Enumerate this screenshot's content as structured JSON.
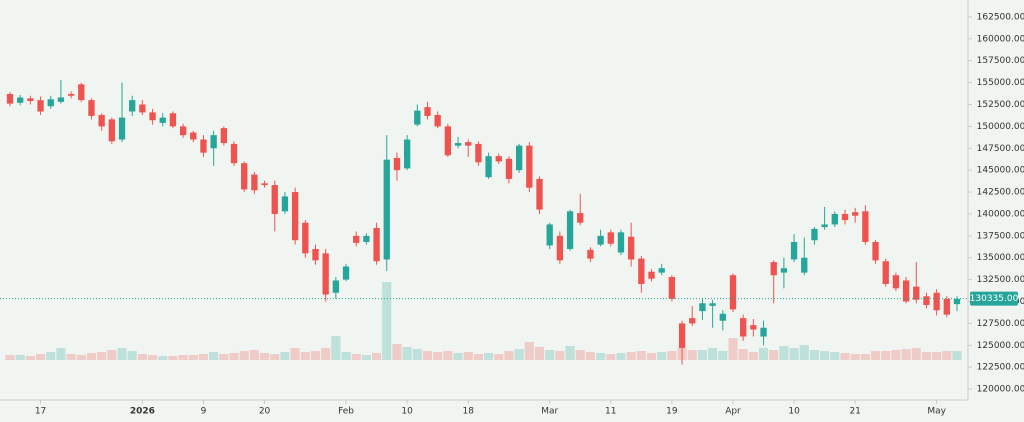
{
  "chart_data": {
    "type": "candlestick",
    "categories": [
      null,
      null,
      null,
      "17",
      null,
      null,
      null,
      null,
      null,
      null,
      null,
      null,
      null,
      "2026",
      null,
      null,
      null,
      null,
      null,
      "9",
      null,
      null,
      null,
      null,
      null,
      "20",
      null,
      null,
      null,
      null,
      null,
      null,
      null,
      "Feb",
      null,
      null,
      null,
      null,
      null,
      "10",
      null,
      null,
      null,
      null,
      null,
      "18",
      null,
      null,
      null,
      null,
      null,
      null,
      null,
      "Mar",
      null,
      null,
      null,
      null,
      null,
      "11",
      null,
      null,
      null,
      null,
      null,
      "19",
      null,
      null,
      null,
      null,
      null,
      "Apr",
      null,
      null,
      null,
      null,
      null,
      "10",
      null,
      null,
      null,
      null,
      null,
      "21",
      null,
      null,
      null,
      null,
      null,
      null,
      null,
      "May",
      null,
      null
    ],
    "open": [
      153700,
      152700,
      153200,
      153000,
      152300,
      152800,
      153700,
      154800,
      153000,
      151300,
      150800,
      148500,
      151700,
      152500,
      151600,
      150400,
      151500,
      150000,
      149300,
      148500,
      147500,
      149800,
      148000,
      145800,
      144500,
      143500,
      143300,
      140300,
      142500,
      139000,
      136000,
      135500,
      131000,
      132500,
      137500,
      136800,
      138400,
      134800,
      146400,
      145200,
      150200,
      152200,
      151300,
      150000,
      147800,
      148200,
      148000,
      144200,
      146600,
      146300,
      145000,
      147800,
      144000,
      136400,
      137500,
      136000,
      140100,
      135900,
      136500,
      137900,
      135600,
      137400,
      134900,
      133400,
      133300,
      132800,
      127500,
      128100,
      128900,
      129500,
      127800,
      133000,
      128100,
      127300,
      126000,
      134500,
      133300,
      134800,
      133300,
      137000,
      138500,
      138800,
      140000,
      140200,
      140300,
      136800,
      134600,
      133000,
      132400,
      131700,
      130600,
      131000,
      130300,
      129700
    ],
    "high": [
      153900,
      153600,
      153500,
      153400,
      153500,
      155300,
      154000,
      155000,
      153200,
      151500,
      151000,
      155000,
      153500,
      153000,
      152000,
      151500,
      151700,
      150300,
      149500,
      149000,
      149500,
      150000,
      148300,
      146000,
      144800,
      143800,
      143800,
      142500,
      143000,
      139300,
      136500,
      136000,
      132800,
      134300,
      138000,
      137800,
      139000,
      149000,
      147000,
      149000,
      152500,
      152800,
      151700,
      150300,
      148800,
      148500,
      148300,
      147000,
      146900,
      146600,
      148000,
      148200,
      144300,
      139000,
      138000,
      140500,
      142300,
      136200,
      138200,
      138200,
      138200,
      139000,
      135200,
      133700,
      134300,
      133000,
      127800,
      129500,
      130400,
      130200,
      129000,
      133200,
      128500,
      128000,
      127800,
      134700,
      135000,
      137700,
      137300,
      138500,
      140800,
      140300,
      140500,
      140700,
      141000,
      137000,
      134900,
      133300,
      132800,
      134500,
      131000,
      131400,
      130600,
      130600
    ],
    "low": [
      152300,
      152400,
      152500,
      151300,
      152000,
      152600,
      153200,
      152800,
      150800,
      149500,
      148000,
      148200,
      151200,
      151300,
      150200,
      150000,
      149800,
      148700,
      148200,
      146500,
      145500,
      147800,
      145500,
      142500,
      142300,
      143000,
      138000,
      140000,
      136500,
      135000,
      134200,
      130000,
      130300,
      132300,
      136300,
      136500,
      134200,
      133500,
      143800,
      145000,
      150000,
      150800,
      149800,
      146500,
      147500,
      146500,
      145500,
      144000,
      145700,
      143500,
      144700,
      142500,
      140000,
      136000,
      134300,
      135800,
      138700,
      134500,
      136300,
      136300,
      135300,
      134000,
      131000,
      132300,
      133000,
      130000,
      122800,
      127200,
      127900,
      127000,
      126700,
      128800,
      125500,
      126000,
      125000,
      129800,
      131500,
      134500,
      133000,
      136500,
      138200,
      138500,
      138800,
      139000,
      136500,
      134300,
      131700,
      131200,
      129800,
      129800,
      129200,
      128400,
      128200,
      128900
    ],
    "close": [
      152600,
      153300,
      152900,
      151700,
      153100,
      153300,
      153500,
      153000,
      151200,
      150000,
      148300,
      151000,
      153000,
      151600,
      150700,
      151000,
      150000,
      149000,
      148500,
      147000,
      149000,
      148100,
      145800,
      142800,
      142700,
      143300,
      140000,
      142000,
      137000,
      135500,
      134700,
      130800,
      132400,
      134000,
      136700,
      137500,
      134600,
      146200,
      145000,
      148500,
      151800,
      151200,
      150000,
      146700,
      148100,
      147800,
      145900,
      146600,
      146000,
      144000,
      147800,
      143000,
      140500,
      138800,
      134700,
      140300,
      139000,
      134900,
      137500,
      136600,
      137900,
      134800,
      132000,
      132600,
      133800,
      130300,
      124700,
      127500,
      129800,
      129800,
      128600,
      129100,
      126000,
      126800,
      127000,
      133000,
      133800,
      136800,
      135000,
      138300,
      138800,
      140000,
      139300,
      139800,
      136800,
      134700,
      132000,
      131500,
      130000,
      130200,
      129600,
      129000,
      128500,
      130300
    ],
    "volume": [
      5,
      5,
      4,
      6,
      8,
      12,
      6,
      5,
      7,
      8,
      10,
      12,
      9,
      6,
      5,
      4,
      4,
      5,
      5,
      6,
      8,
      6,
      7,
      9,
      10,
      7,
      6,
      8,
      12,
      8,
      9,
      12,
      24,
      8,
      6,
      5,
      7,
      78,
      16,
      13,
      11,
      9,
      8,
      9,
      7,
      8,
      6,
      7,
      6,
      9,
      11,
      18,
      13,
      10,
      9,
      14,
      10,
      8,
      7,
      6,
      7,
      8,
      9,
      7,
      8,
      9,
      12,
      10,
      10,
      12,
      9,
      22,
      11,
      8,
      12,
      10,
      14,
      12,
      15,
      10,
      9,
      8,
      7,
      6,
      6,
      9,
      9,
      10,
      11,
      12,
      8,
      8,
      9,
      9
    ],
    "up_color": "#26a69a",
    "down_color": "#ef5350",
    "last_price": {
      "value": 130335,
      "label": "130335.00"
    },
    "ylim": [
      118750,
      163750
    ],
    "yticks": [
      {
        "value": 120000,
        "label": "120000.00"
      },
      {
        "value": 122500,
        "label": "122500.00"
      },
      {
        "value": 125000,
        "label": "125000.00"
      },
      {
        "value": 127500,
        "label": "127500.00"
      },
      {
        "value": 130000,
        "label": "130000.00"
      },
      {
        "value": 132500,
        "label": "132500.00"
      },
      {
        "value": 135000,
        "label": "135000.00"
      },
      {
        "value": 137500,
        "label": "137500.00"
      },
      {
        "value": 140000,
        "label": "140000.00"
      },
      {
        "value": 142500,
        "label": "142500.00"
      },
      {
        "value": 145000,
        "label": "145000.00"
      },
      {
        "value": 147500,
        "label": "147500.00"
      },
      {
        "value": 150000,
        "label": "150000.00"
      },
      {
        "value": 152500,
        "label": "152500.00"
      },
      {
        "value": 155000,
        "label": "155000.00"
      },
      {
        "value": 157500,
        "label": "157500.00"
      },
      {
        "value": 160000,
        "label": "160000.00"
      },
      {
        "value": 162500,
        "label": "162500.00"
      }
    ],
    "grid": false
  }
}
